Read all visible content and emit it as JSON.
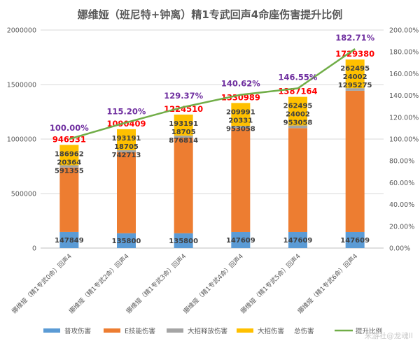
{
  "chart_data": {
    "type": "bar",
    "stacked": true,
    "title": "娜维娅（班尼特+钟离）精1专武回声4命座伤害提升比例",
    "categories": [
      "娜维娅（精1专武0命）回声4",
      "娜维娅（精1专武2命）回声4",
      "娜维娅（精1专武3命）回声4",
      "娜维娅（精1专武4命）回声4",
      "娜维娅（精1专武5命）回声4",
      "娜维娅（精1专武6命）回声4"
    ],
    "series": [
      {
        "name": "普攻伤害",
        "color": "#5b9bd5",
        "values": [
          147849,
          135800,
          135800,
          147609,
          147609,
          147609
        ]
      },
      {
        "name": "E技能伤害",
        "color": "#ed7d31",
        "values": [
          591355,
          742713,
          876814,
          953058,
          953058,
          1295275
        ]
      },
      {
        "name": "大招释放伤害",
        "color": "#a5a5a5",
        "values": [
          20364,
          18705,
          18705,
          20331,
          24002,
          24002
        ]
      },
      {
        "name": "大招伤害",
        "color": "#ffc000",
        "values": [
          186962,
          193191,
          193191,
          209991,
          262495,
          262495
        ]
      }
    ],
    "totals": {
      "name": "总伤害",
      "values": [
        946531,
        1090409,
        1224510,
        1330989,
        1387164,
        1729380
      ]
    },
    "ratio": {
      "name": "提升比例",
      "color": "#70ad47",
      "values": [
        1.0,
        1.152,
        1.2937,
        1.4062,
        1.4655,
        1.8271
      ],
      "labels": [
        "100.00%",
        "115.20%",
        "129.37%",
        "140.62%",
        "146.55%",
        "182.71%"
      ]
    },
    "ylim": [
      0,
      2000000
    ],
    "yticks": [
      "0",
      "500000",
      "1000000",
      "1500000",
      "2000000"
    ],
    "y2lim": [
      0,
      2.0
    ],
    "y2ticks": [
      "0.00%",
      "20.00%",
      "40.00%",
      "60.00%",
      "80.00%",
      "100.00%",
      "120.00%",
      "140.00%",
      "160.00%",
      "180.00%",
      "200.00%"
    ],
    "legend_position": "bottom"
  },
  "watermark": "米游社@龙魂II",
  "colors": {
    "grid": "#d9d9d9",
    "axis": "#bfbfbf",
    "total_label": "#ff0000",
    "ratio_label": "#7030a0"
  }
}
